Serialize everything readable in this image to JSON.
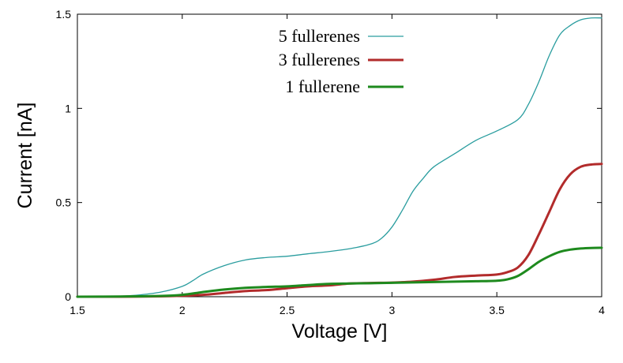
{
  "chart_data": {
    "type": "line",
    "xlabel": "Voltage [V]",
    "ylabel": "Current [nA]",
    "xlim": [
      1.5,
      4
    ],
    "ylim": [
      0,
      1.5
    ],
    "xticks": [
      1.5,
      2,
      2.5,
      3,
      3.5,
      4
    ],
    "xtick_labels": [
      "1.5",
      "2",
      "2.5",
      "3",
      "3.5",
      "4"
    ],
    "yticks": [
      0,
      0.5,
      1,
      1.5
    ],
    "ytick_labels": [
      "0",
      "0.5",
      "1",
      "1.5"
    ],
    "grid": false,
    "legend_position": "top-center",
    "series": [
      {
        "name": "5 fullerenes",
        "color": "#2a9d9f",
        "x": [
          1.5,
          1.6,
          1.7,
          1.8,
          1.9,
          2.0,
          2.05,
          2.1,
          2.2,
          2.3,
          2.4,
          2.5,
          2.6,
          2.7,
          2.8,
          2.9,
          2.95,
          3.0,
          3.05,
          3.1,
          3.15,
          3.2,
          3.3,
          3.4,
          3.5,
          3.6,
          3.65,
          3.7,
          3.75,
          3.8,
          3.85,
          3.9,
          3.95,
          4.0
        ],
        "y": [
          0.0,
          0.001,
          0.003,
          0.01,
          0.025,
          0.055,
          0.085,
          0.12,
          0.165,
          0.195,
          0.208,
          0.215,
          0.228,
          0.24,
          0.255,
          0.28,
          0.31,
          0.37,
          0.46,
          0.56,
          0.63,
          0.69,
          0.76,
          0.83,
          0.88,
          0.94,
          1.02,
          1.14,
          1.28,
          1.39,
          1.44,
          1.47,
          1.48,
          1.48
        ]
      },
      {
        "name": "3 fullerenes",
        "color": "#b22b2b",
        "x": [
          1.5,
          1.7,
          1.9,
          2.0,
          2.1,
          2.2,
          2.3,
          2.4,
          2.5,
          2.6,
          2.7,
          2.8,
          2.9,
          3.0,
          3.1,
          3.2,
          3.3,
          3.4,
          3.5,
          3.55,
          3.6,
          3.65,
          3.7,
          3.75,
          3.8,
          3.85,
          3.9,
          3.95,
          4.0
        ],
        "y": [
          0.0,
          0.0,
          0.002,
          0.005,
          0.01,
          0.02,
          0.03,
          0.035,
          0.045,
          0.055,
          0.06,
          0.07,
          0.073,
          0.075,
          0.08,
          0.09,
          0.105,
          0.112,
          0.118,
          0.13,
          0.155,
          0.22,
          0.33,
          0.45,
          0.57,
          0.65,
          0.69,
          0.702,
          0.705
        ]
      },
      {
        "name": "1 fullerene",
        "color": "#1e8a1e",
        "x": [
          1.5,
          1.7,
          1.9,
          2.0,
          2.1,
          2.2,
          2.3,
          2.4,
          2.5,
          2.6,
          2.7,
          2.8,
          2.9,
          3.0,
          3.1,
          3.2,
          3.3,
          3.4,
          3.5,
          3.55,
          3.6,
          3.65,
          3.7,
          3.75,
          3.8,
          3.85,
          3.9,
          3.95,
          4.0
        ],
        "y": [
          0.0,
          0.001,
          0.004,
          0.01,
          0.025,
          0.038,
          0.047,
          0.052,
          0.055,
          0.062,
          0.068,
          0.07,
          0.072,
          0.074,
          0.076,
          0.078,
          0.08,
          0.082,
          0.085,
          0.092,
          0.11,
          0.145,
          0.185,
          0.215,
          0.238,
          0.25,
          0.256,
          0.259,
          0.26
        ]
      }
    ]
  }
}
